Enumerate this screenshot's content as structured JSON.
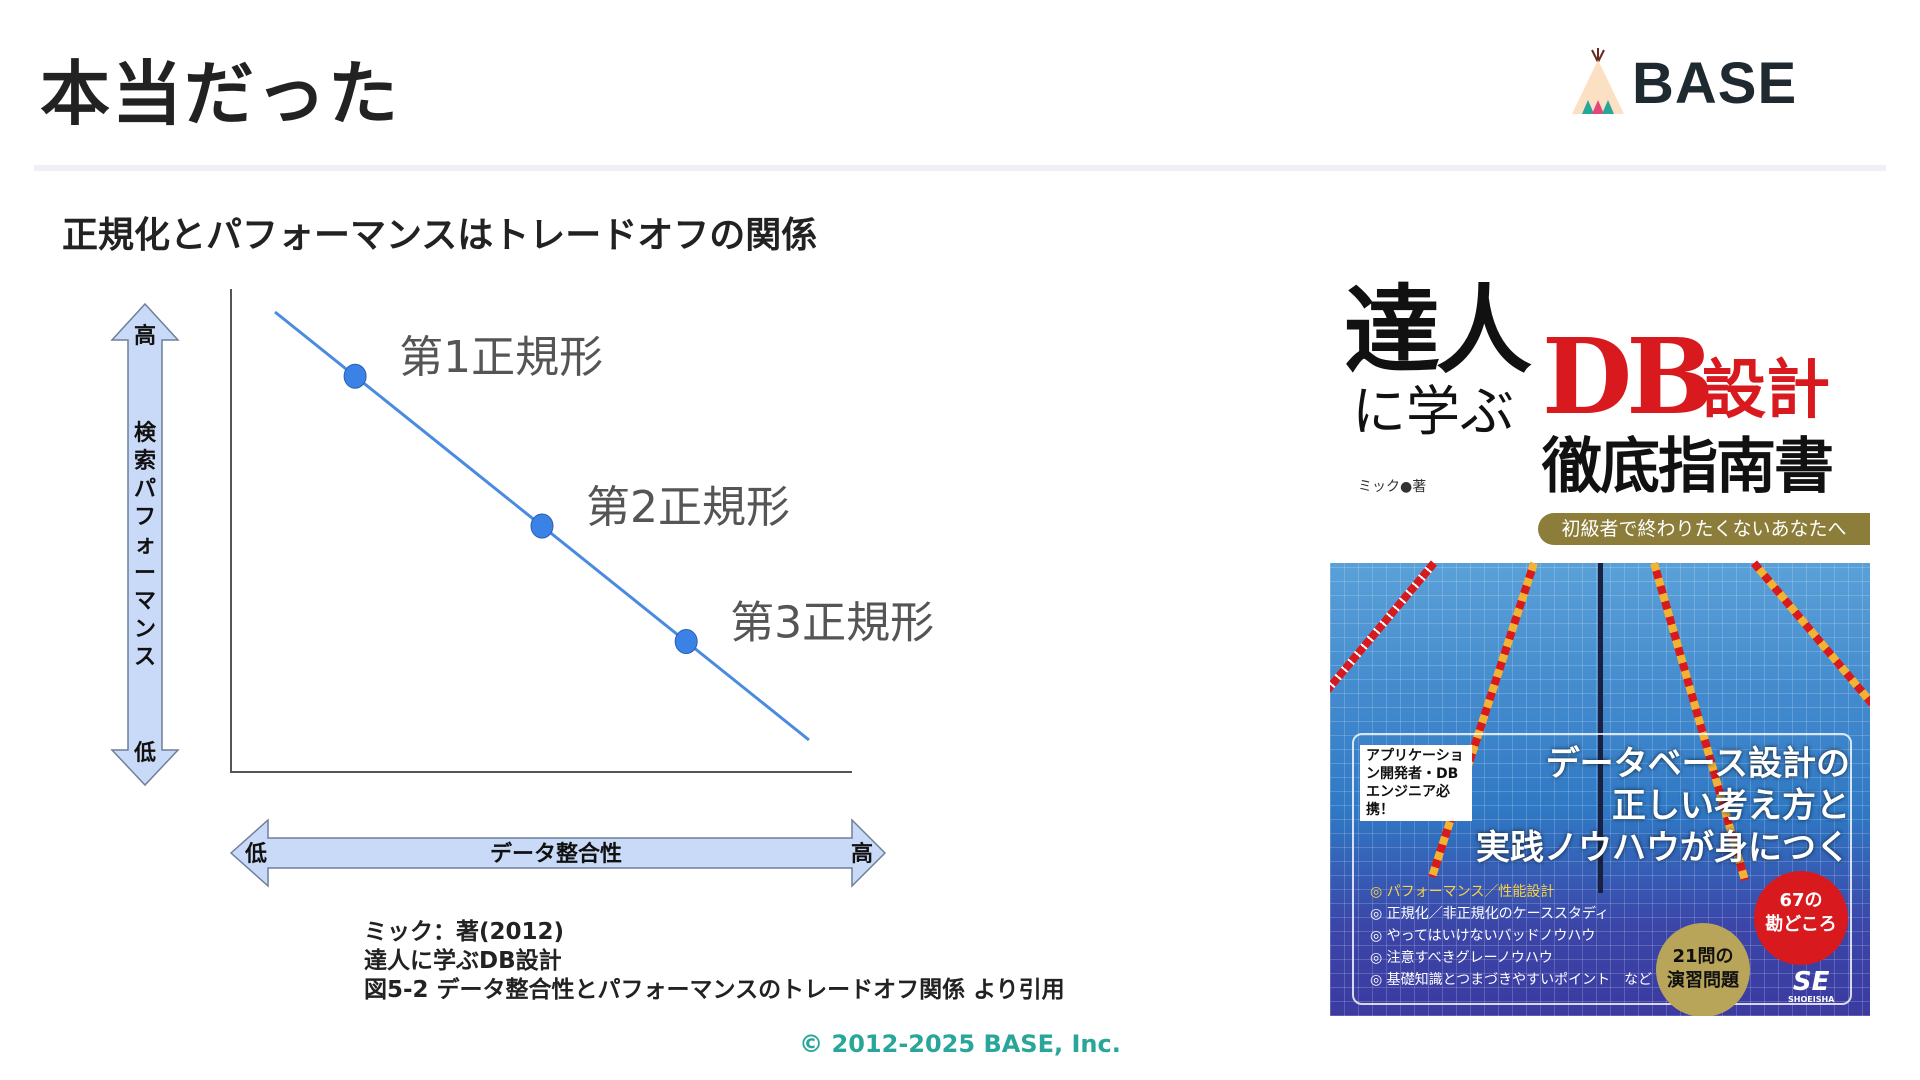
{
  "header": {
    "title": "本当だった",
    "logo_text": "BASE"
  },
  "subtitle": "正規化とパフォーマンスはトレードオフの関係",
  "diagram": {
    "y_axis": {
      "label": "検索パフォーマンス",
      "high": "高",
      "low": "低"
    },
    "x_axis": {
      "label": "データ整合性",
      "high": "高",
      "low": "低"
    },
    "points": [
      {
        "label": "第1正規形"
      },
      {
        "label": "第2正規形"
      },
      {
        "label": "第3正規形"
      }
    ],
    "line_color": "#4a8be0",
    "point_color": "#3b82e6",
    "arrow_fill": "#c9daf8"
  },
  "citation": {
    "lines": [
      "ミック：著(2012)",
      "達人に学ぶDB設計",
      "図5-2 データ整合性とパフォーマンスのトレードオフ関係 より引用"
    ]
  },
  "book_cover": {
    "title_line1": "達人",
    "title_line2": "に学ぶ",
    "title_db": "DB",
    "title_sekkei": "設計",
    "title_line3": "徹底指南書",
    "author": "ミック●著",
    "band": "初級者で終わりたくないあなたへ",
    "tag": "アプリケーション開発者・DBエンジニア必携！",
    "headline": [
      "データベース設計の",
      "正しい考え方と",
      "実践ノウハウが身につく"
    ],
    "list": [
      "◎ パフォーマンス／性能設計",
      "◎ 正規化／非正規化のケーススタディ",
      "◎ やってはいけないバッドノウハウ",
      "◎ 注意すべきグレーノウハウ",
      "◎ 基礎知識とつまづきやすいポイント　など"
    ],
    "badge_67": [
      "67の",
      "勘どころ"
    ],
    "badge_21": [
      "21問の",
      "演習問題"
    ],
    "publisher": "SE",
    "publisher_sub": "SHOEISHA"
  },
  "footer": "© 2012-2025 BASE, Inc."
}
